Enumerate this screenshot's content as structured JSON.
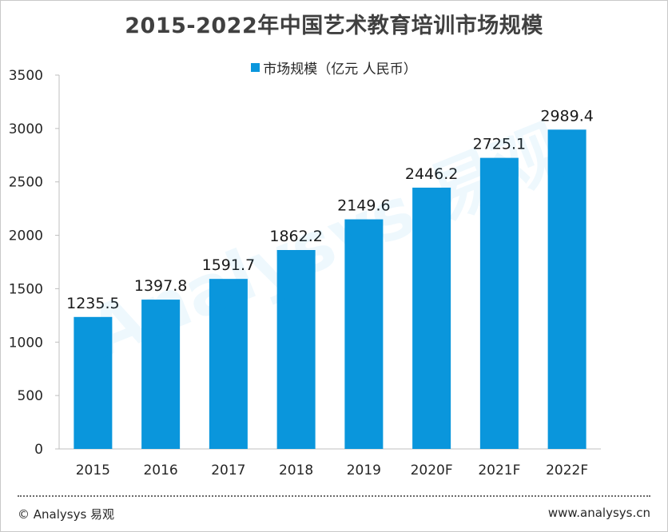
{
  "chart_data": {
    "type": "bar",
    "title": "2015-2022年中国艺术教育培训市场规模",
    "categories": [
      "2015",
      "2016",
      "2017",
      "2018",
      "2019",
      "2020F",
      "2021F",
      "2022F"
    ],
    "series": [
      {
        "name": "市场规模（亿元 人民币）",
        "values": [
          1235.5,
          1397.8,
          1591.7,
          1862.2,
          2149.6,
          2446.2,
          2725.1,
          2989.4
        ],
        "color": "#0a96dc"
      }
    ],
    "value_labels": [
      "1235.5",
      "1397.8",
      "1591.7",
      "1862.2",
      "2149.6",
      "2446.2",
      "2725.1",
      "2989.4"
    ],
    "y_ticks": [
      "0",
      "500",
      "1000",
      "1500",
      "2000",
      "2500",
      "3000",
      "3500"
    ],
    "ylim": [
      0,
      3500
    ],
    "legend_position": "top-center",
    "grid": false,
    "watermark": "Analysys 易观"
  },
  "footer": {
    "left": "© Analysys 易观",
    "right": "www.analysys.cn"
  }
}
